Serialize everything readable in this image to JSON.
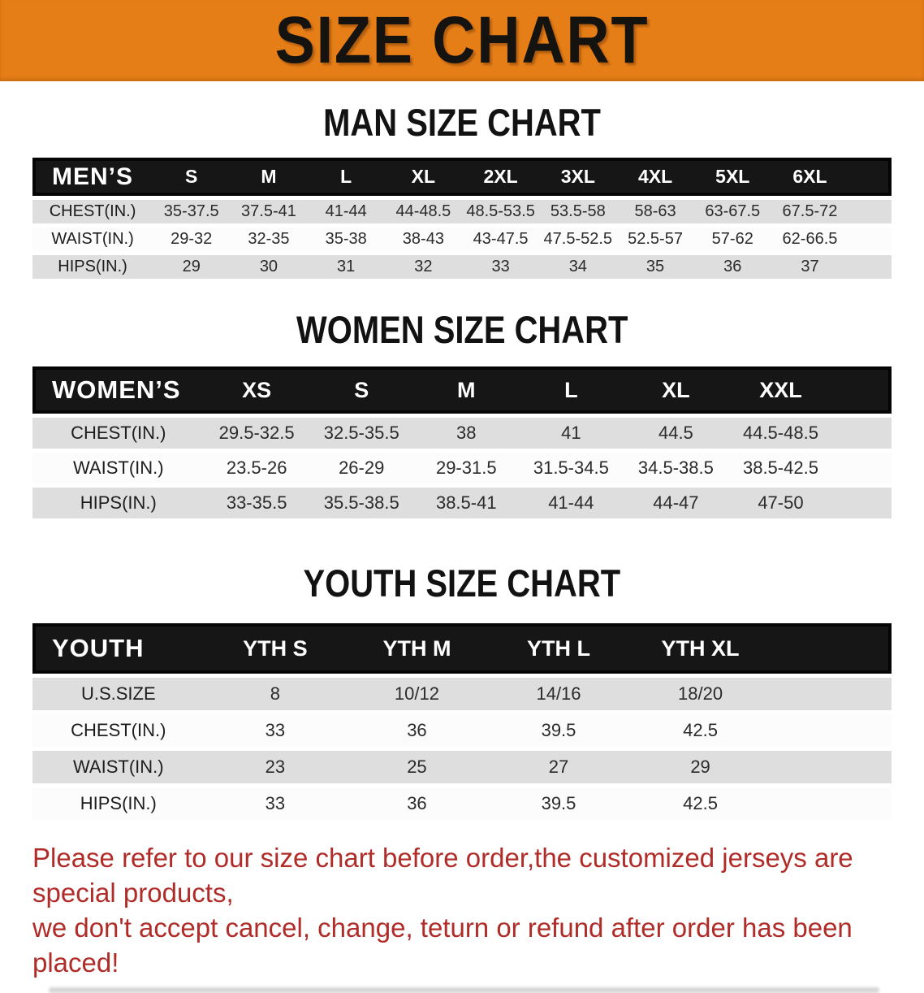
{
  "banner": {
    "title": "SIZE CHART"
  },
  "colors": {
    "banner_bg": "#e67e17",
    "header_bg": "#161616",
    "row_shaded": "#dedede",
    "row_plain": "#fcfcfc",
    "note_text": "#b02c28",
    "data_text": "#2b2b2b"
  },
  "sections": {
    "men": {
      "heading": "MAN SIZE CHART",
      "table": {
        "label": "MEN’S",
        "sizes": [
          "S",
          "M",
          "L",
          "XL",
          "2XL",
          "3XL",
          "4XL",
          "5XL",
          "6XL"
        ],
        "rows": [
          {
            "label": "CHEST(IN.)",
            "values": [
              "35-37.5",
              "37.5-41",
              "41-44",
              "44-48.5",
              "48.5-53.5",
              "53.5-58",
              "58-63",
              "63-67.5",
              "67.5-72"
            ]
          },
          {
            "label": "WAIST(IN.)",
            "values": [
              "29-32",
              "32-35",
              "35-38",
              "38-43",
              "43-47.5",
              "47.5-52.5",
              "52.5-57",
              "57-62",
              "62-66.5"
            ]
          },
          {
            "label": "HIPS(IN.)",
            "values": [
              "29",
              "30",
              "31",
              "32",
              "33",
              "34",
              "35",
              "36",
              "37"
            ]
          }
        ]
      }
    },
    "women": {
      "heading": "WOMEN SIZE CHART",
      "table": {
        "label": "WOMEN’S",
        "sizes": [
          "XS",
          "S",
          "M",
          "L",
          "XL",
          "XXL"
        ],
        "rows": [
          {
            "label": "CHEST(IN.)",
            "values": [
              "29.5-32.5",
              "32.5-35.5",
              "38",
              "41",
              "44.5",
              "44.5-48.5"
            ]
          },
          {
            "label": "WAIST(IN.)",
            "values": [
              "23.5-26",
              "26-29",
              "29-31.5",
              "31.5-34.5",
              "34.5-38.5",
              "38.5-42.5"
            ]
          },
          {
            "label": "HIPS(IN.)",
            "values": [
              "33-35.5",
              "35.5-38.5",
              "38.5-41",
              "41-44",
              "44-47",
              "47-50"
            ]
          }
        ]
      }
    },
    "youth": {
      "heading": "YOUTH SIZE CHART",
      "table": {
        "label": "YOUTH",
        "sizes": [
          "YTH S",
          "YTH M",
          "YTH L",
          "YTH XL"
        ],
        "rows": [
          {
            "label": "U.S.SIZE",
            "values": [
              "8",
              "10/12",
              "14/16",
              "18/20"
            ]
          },
          {
            "label": "CHEST(IN.)",
            "values": [
              "33",
              "36",
              "39.5",
              "42.5"
            ]
          },
          {
            "label": "WAIST(IN.)",
            "values": [
              "23",
              "25",
              "27",
              "29"
            ]
          },
          {
            "label": "HIPS(IN.)",
            "values": [
              "33",
              "36",
              "39.5",
              "42.5"
            ]
          }
        ]
      }
    }
  },
  "note": {
    "line1": "Please refer to our size chart before order,the customized jerseys are special products,",
    "line2": "we don't accept cancel, change, teturn or refund after order has been placed!"
  }
}
